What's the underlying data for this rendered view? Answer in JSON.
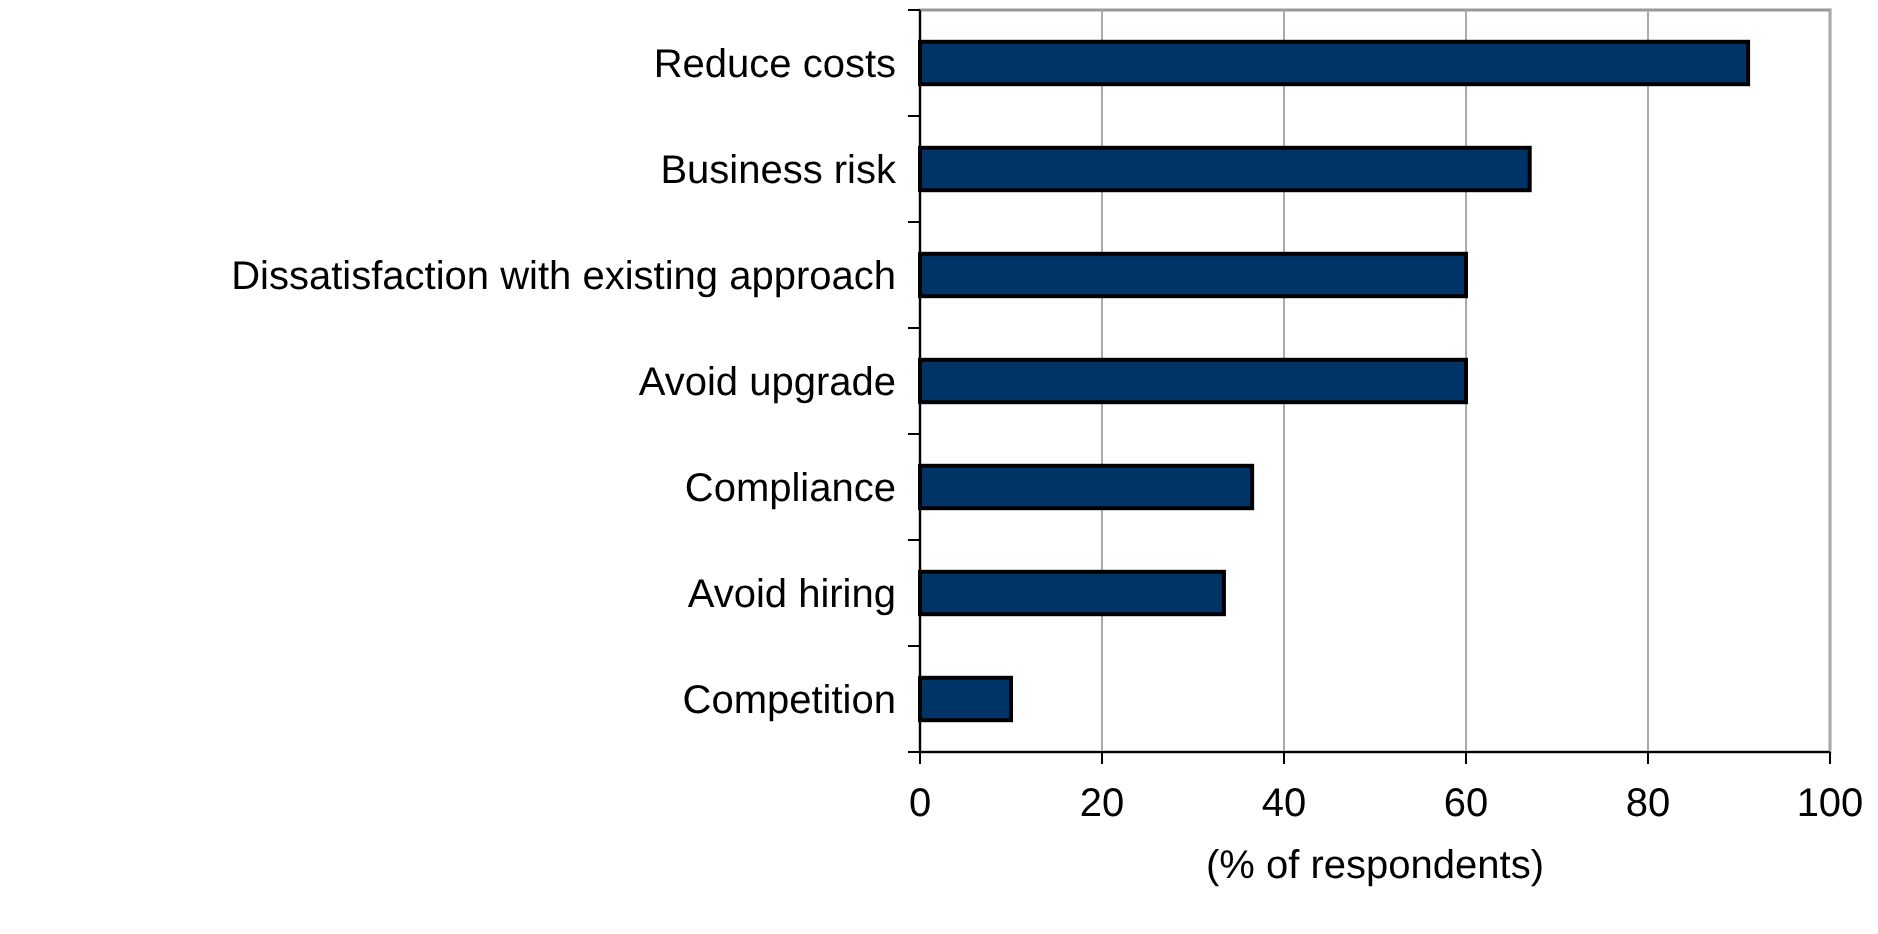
{
  "chart_data": {
    "type": "bar",
    "orientation": "horizontal",
    "categories": [
      "Reduce costs",
      "Business risk",
      "Dissatisfaction with existing approach",
      "Avoid upgrade",
      "Compliance ",
      "Avoid hiring",
      "Competition"
    ],
    "values": [
      91,
      67,
      60,
      60,
      36.5,
      33.4,
      10
    ],
    "color": "#003366",
    "xlabel": "(% of respondents)",
    "xlim": [
      0,
      100
    ],
    "xticks": [
      0,
      20,
      40,
      60,
      80,
      100
    ],
    "grid": "x"
  }
}
